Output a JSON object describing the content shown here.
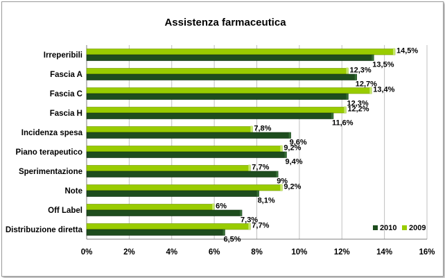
{
  "chart_data": {
    "type": "bar",
    "orientation": "horizontal",
    "title": "Assistenza farmaceutica",
    "categories": [
      "Irreperibili",
      "Fascia A",
      "Fascia C",
      "Fascia H",
      "Incidenza spesa",
      "Piano terapeutico",
      "Sperimentazione",
      "Note",
      "Off Label",
      "Distribuzione diretta"
    ],
    "series": [
      {
        "name": "2009",
        "color": "#99cc00",
        "values": [
          14.5,
          12.3,
          13.4,
          12.2,
          7.8,
          9.2,
          7.7,
          9.2,
          6.0,
          7.7
        ],
        "labels": [
          "14,5%",
          "12,3%",
          "13,4%",
          "12,2%",
          "7,8%",
          "9,2%",
          "7,7%",
          "9,2%",
          "6%",
          "7,7%"
        ]
      },
      {
        "name": "2010",
        "color": "#1e4d1e",
        "values": [
          13.5,
          12.7,
          12.3,
          11.6,
          9.6,
          9.4,
          9.0,
          8.1,
          7.3,
          6.5
        ],
        "labels": [
          "13,5%",
          "12,7%",
          "12,3%",
          "11,6%",
          "9,6%",
          "9,4%",
          "9%",
          "8,1%",
          "7,3%",
          "6,5%"
        ]
      }
    ],
    "xlim": [
      0,
      16
    ],
    "xticks": [
      "0%",
      "2%",
      "4%",
      "6%",
      "8%",
      "10%",
      "12%",
      "14%",
      "16%"
    ],
    "grid": true,
    "legend": "bottom-right",
    "legend_entries": [
      "2010",
      "2009"
    ]
  }
}
